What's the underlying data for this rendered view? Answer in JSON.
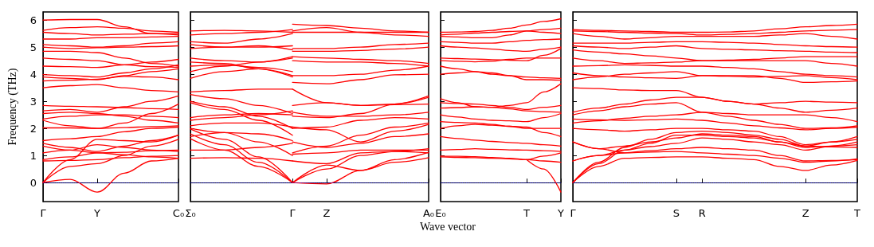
{
  "chart_data": [
    {
      "type": "line",
      "ylabel": "Frequency (THz)",
      "categories": [
        "Γ",
        null,
        "Y",
        null,
        null,
        "C₀"
      ],
      "ylim": [
        -0.7,
        6.3
      ],
      "yticks": [
        0,
        1,
        2,
        3,
        4,
        5,
        6
      ],
      "line_style": "solid",
      "ref_lines": [
        {
          "axis": "y",
          "value": 0,
          "color": "#0000ff",
          "line_style": "dotted"
        }
      ],
      "series": [
        {
          "color": "#ff0000",
          "values": [
            6.0,
            6.02,
            6.02,
            5.75,
            5.5,
            5.45
          ]
        },
        {
          "color": "#ff0000",
          "values": [
            5.62,
            5.72,
            5.75,
            5.7,
            5.6,
            5.55
          ]
        },
        {
          "color": "#ff0000",
          "values": [
            5.55,
            5.5,
            5.45,
            5.48,
            5.5,
            5.5
          ]
        },
        {
          "color": "#ff0000",
          "values": [
            5.3,
            5.3,
            5.35,
            5.35,
            5.38,
            5.4
          ]
        },
        {
          "color": "#ff0000",
          "values": [
            5.1,
            5.05,
            5.0,
            5.05,
            5.15,
            5.2
          ]
        },
        {
          "color": "#ff0000",
          "values": [
            5.0,
            4.95,
            4.98,
            5.0,
            5.02,
            5.05
          ]
        },
        {
          "color": "#ff0000",
          "values": [
            4.85,
            4.85,
            4.8,
            4.6,
            4.4,
            4.3
          ]
        },
        {
          "color": "#ff0000",
          "values": [
            4.6,
            4.55,
            4.5,
            4.35,
            4.28,
            4.25
          ]
        },
        {
          "color": "#ff0000",
          "values": [
            4.3,
            4.28,
            4.25,
            4.35,
            4.45,
            4.55
          ]
        },
        {
          "color": "#ff0000",
          "values": [
            3.99,
            3.95,
            3.9,
            4.05,
            4.2,
            4.35
          ]
        },
        {
          "color": "#ff0000",
          "values": [
            3.9,
            3.85,
            3.8,
            3.95,
            4.1,
            4.2
          ]
        },
        {
          "color": "#ff0000",
          "values": [
            3.75,
            3.78,
            3.82,
            3.92,
            3.9,
            3.8
          ]
        },
        {
          "color": "#ff0000",
          "values": [
            3.5,
            3.58,
            3.62,
            3.5,
            3.4,
            3.35
          ]
        },
        {
          "color": "#ff0000",
          "values": [
            2.85,
            2.82,
            2.8,
            2.77,
            2.73,
            2.7
          ]
        },
        {
          "color": "#ff0000",
          "values": [
            2.65,
            2.7,
            2.6,
            2.8,
            3.0,
            3.2
          ]
        },
        {
          "color": "#ff0000",
          "values": [
            2.55,
            2.6,
            2.55,
            2.45,
            2.3,
            2.2
          ]
        },
        {
          "color": "#ff0000",
          "values": [
            2.35,
            2.45,
            2.5,
            2.5,
            2.45,
            2.4
          ]
        },
        {
          "color": "#ff0000",
          "values": [
            2.3,
            2.1,
            2.0,
            2.2,
            2.55,
            2.9
          ]
        },
        {
          "color": "#ff0000",
          "values": [
            2.02,
            2.02,
            2.0,
            2.03,
            2.07,
            2.1
          ]
        },
        {
          "color": "#ff0000",
          "values": [
            1.55,
            1.62,
            1.7,
            1.88,
            2.0,
            2.05
          ]
        },
        {
          "color": "#ff0000",
          "values": [
            1.45,
            1.3,
            1.15,
            1.35,
            1.55,
            1.75
          ]
        },
        {
          "color": "#ff0000",
          "values": [
            1.35,
            1.2,
            1.1,
            1.12,
            1.18,
            1.2
          ]
        },
        {
          "color": "#ff0000",
          "values": [
            1.1,
            1.2,
            1.4,
            1.3,
            1.2,
            1.15
          ]
        },
        {
          "color": "#ff0000",
          "values": [
            0.85,
            0.95,
            1.1,
            1.03,
            0.95,
            0.9
          ]
        },
        {
          "color": "#ff0000",
          "values": [
            0.8,
            0.82,
            0.85,
            0.92,
            0.97,
            1.0
          ]
        },
        {
          "color": "#ff0000",
          "values": [
            0,
            0.6,
            0.7,
            1.0,
            1.35,
            1.6
          ]
        },
        {
          "color": "#ff0000",
          "values": [
            0,
            0.85,
            1.6,
            1.55,
            1.5,
            1.75
          ]
        },
        {
          "color": "#ff0000",
          "values": [
            0,
            0.12,
            -0.35,
            0.35,
            0.8,
            0.9
          ]
        }
      ]
    },
    {
      "type": "line",
      "xlabel": "Wave vector",
      "categories": [
        "Σ₀",
        null,
        null,
        "Γ",
        "Z",
        null,
        null,
        "A₀"
      ],
      "ylim": [
        -0.7,
        6.3
      ],
      "yticks": [
        0,
        1,
        2,
        3,
        4,
        5,
        6
      ],
      "tick_labels": "x",
      "line_style": "solid",
      "ref_lines": [
        {
          "axis": "y",
          "value": 0,
          "color": "#0000ff",
          "line_style": "dotted"
        }
      ],
      "series": [
        {
          "color": "#ff0000",
          "values": [
            5.6,
            5.62,
            5.6,
            5.55,
            null,
            null,
            null,
            null
          ]
        },
        {
          "color": "#ff0000",
          "values": [
            5.45,
            5.5,
            5.55,
            5.65,
            null,
            null,
            null,
            null
          ]
        },
        {
          "color": "#ff0000",
          "values": [
            5.2,
            5.15,
            5.3,
            5.5,
            null,
            null,
            null,
            null
          ]
        },
        {
          "color": "#ff0000",
          "values": [
            5.1,
            5.0,
            5.0,
            5.05,
            null,
            null,
            null,
            null
          ]
        },
        {
          "color": "#ff0000",
          "values": [
            4.95,
            5.0,
            5.05,
            4.9,
            null,
            null,
            null,
            null
          ]
        },
        {
          "color": "#ff0000",
          "values": [
            4.6,
            4.5,
            4.45,
            4.65,
            null,
            null,
            null,
            null
          ]
        },
        {
          "color": "#ff0000",
          "values": [
            4.45,
            4.4,
            4.2,
            3.9,
            null,
            null,
            null,
            null
          ]
        },
        {
          "color": "#ff0000",
          "values": [
            4.3,
            4.35,
            4.25,
            4.1,
            null,
            null,
            null,
            null
          ]
        },
        {
          "color": "#ff0000",
          "values": [
            4.1,
            4.3,
            4.45,
            4.6,
            null,
            null,
            null,
            null
          ]
        },
        {
          "color": "#ff0000",
          "values": [
            3.85,
            4.1,
            4.2,
            3.95,
            null,
            null,
            null,
            null
          ]
        },
        {
          "color": "#ff0000",
          "values": [
            3.35,
            3.4,
            3.45,
            3.45,
            null,
            null,
            null,
            null
          ]
        },
        {
          "color": "#ff0000",
          "values": [
            3.25,
            3.1,
            2.85,
            2.55,
            null,
            null,
            null,
            null
          ]
        },
        {
          "color": "#ff0000",
          "values": [
            3.0,
            2.8,
            2.45,
            2.0,
            null,
            null,
            null,
            null
          ]
        },
        {
          "color": "#ff0000",
          "values": [
            2.95,
            2.7,
            2.3,
            1.75,
            null,
            null,
            null,
            null
          ]
        },
        {
          "color": "#ff0000",
          "values": [
            2.4,
            2.5,
            2.55,
            2.5,
            null,
            null,
            null,
            null
          ]
        },
        {
          "color": "#ff0000",
          "values": [
            2.3,
            2.4,
            2.5,
            2.65,
            null,
            null,
            null,
            null
          ]
        },
        {
          "color": "#ff0000",
          "values": [
            2.1,
            2.2,
            2.2,
            2.05,
            null,
            null,
            null,
            null
          ]
        },
        {
          "color": "#ff0000",
          "values": [
            2.0,
            1.85,
            1.5,
            1.0,
            null,
            null,
            null,
            null
          ]
        },
        {
          "color": "#ff0000",
          "values": [
            1.98,
            1.6,
            0.95,
            0,
            null,
            null,
            null,
            null
          ]
        },
        {
          "color": "#ff0000",
          "values": [
            1.7,
            1.85,
            1.8,
            1.55,
            null,
            null,
            null,
            null
          ]
        },
        {
          "color": "#ff0000",
          "values": [
            1.62,
            1.2,
            0.6,
            0,
            null,
            null,
            null,
            null
          ]
        },
        {
          "color": "#ff0000",
          "values": [
            1.2,
            1.2,
            1.3,
            1.45,
            null,
            null,
            null,
            null
          ]
        },
        {
          "color": "#ff0000",
          "values": [
            0.9,
            0.92,
            0.9,
            0.8,
            null,
            null,
            null,
            null
          ]
        },
        {
          "color": "#ff0000",
          "values": [
            1.8,
            1.4,
            0.75,
            0,
            null,
            null,
            null,
            null
          ]
        },
        {
          "color": "#ff0000",
          "values": [
            null,
            null,
            null,
            5.85,
            5.8,
            5.7,
            5.6,
            5.55
          ]
        },
        {
          "color": "#ff0000",
          "values": [
            null,
            null,
            null,
            5.6,
            5.72,
            5.55,
            5.45,
            5.4
          ]
        },
        {
          "color": "#ff0000",
          "values": [
            null,
            null,
            null,
            5.55,
            5.55,
            5.55,
            5.55,
            5.55
          ]
        },
        {
          "color": "#ff0000",
          "values": [
            null,
            null,
            null,
            4.95,
            4.95,
            5.0,
            5.1,
            5.15
          ]
        },
        {
          "color": "#ff0000",
          "values": [
            null,
            null,
            null,
            4.85,
            4.85,
            4.88,
            4.93,
            5.0
          ]
        },
        {
          "color": "#ff0000",
          "values": [
            null,
            null,
            null,
            4.65,
            4.6,
            4.55,
            4.5,
            4.4
          ]
        },
        {
          "color": "#ff0000",
          "values": [
            null,
            null,
            null,
            4.5,
            4.45,
            4.45,
            4.4,
            4.3
          ]
        },
        {
          "color": "#ff0000",
          "values": [
            null,
            null,
            null,
            3.95,
            3.95,
            4.0,
            4.15,
            4.3
          ]
        },
        {
          "color": "#ff0000",
          "values": [
            null,
            null,
            null,
            3.7,
            3.65,
            3.8,
            3.98,
            4.0
          ]
        },
        {
          "color": "#ff0000",
          "values": [
            null,
            null,
            null,
            3.45,
            2.95,
            2.85,
            2.9,
            3.2
          ]
        },
        {
          "color": "#ff0000",
          "values": [
            null,
            null,
            null,
            2.85,
            2.95,
            2.85,
            2.88,
            2.9
          ]
        },
        {
          "color": "#ff0000",
          "values": [
            null,
            null,
            null,
            2.6,
            2.45,
            2.45,
            2.5,
            2.6
          ]
        },
        {
          "color": "#ff0000",
          "values": [
            null,
            null,
            null,
            2.45,
            2.4,
            2.55,
            2.9,
            3.15
          ]
        },
        {
          "color": "#ff0000",
          "values": [
            null,
            null,
            null,
            2.0,
            2.05,
            2.3,
            2.4,
            2.35
          ]
        },
        {
          "color": "#ff0000",
          "values": [
            null,
            null,
            null,
            2.05,
            1.95,
            1.5,
            1.9,
            2.15
          ]
        },
        {
          "color": "#ff0000",
          "values": [
            null,
            null,
            null,
            1.5,
            1.3,
            1.45,
            1.7,
            1.8
          ]
        },
        {
          "color": "#ff0000",
          "values": [
            null,
            null,
            null,
            1.1,
            1.35,
            1.75,
            2.05,
            2.2
          ]
        },
        {
          "color": "#ff0000",
          "values": [
            null,
            null,
            null,
            1.05,
            1.1,
            1.2,
            1.2,
            1.2
          ]
        },
        {
          "color": "#ff0000",
          "values": [
            null,
            null,
            null,
            0.8,
            0.7,
            1.1,
            1.15,
            1.1
          ]
        },
        {
          "color": "#ff0000",
          "values": [
            null,
            null,
            null,
            0,
            0.65,
            0.45,
            0.75,
            0.92
          ]
        },
        {
          "color": "#ff0000",
          "values": [
            null,
            null,
            null,
            0,
            0.5,
            1.0,
            1.15,
            1.25
          ]
        },
        {
          "color": "#ff0000",
          "values": [
            null,
            null,
            null,
            0,
            -0.05,
            0.45,
            0.85,
            1.12
          ]
        }
      ]
    },
    {
      "type": "line",
      "categories": [
        "E₀",
        null,
        null,
        null,
        null,
        "T",
        null,
        "Y"
      ],
      "ylim": [
        -0.7,
        6.3
      ],
      "yticks": [
        0,
        1,
        2,
        3,
        4,
        5,
        6
      ],
      "tick_labels": "x",
      "line_style": "solid",
      "ref_lines": [
        {
          "axis": "y",
          "value": 0,
          "color": "#0000ff",
          "line_style": "dotted"
        }
      ],
      "series": [
        {
          "color": "#ff0000",
          "values": [
            5.55,
            5.56,
            5.58,
            5.62,
            5.7,
            5.82,
            5.95,
            6.05
          ]
        },
        {
          "color": "#ff0000",
          "values": [
            5.45,
            5.48,
            5.52,
            5.55,
            5.58,
            5.6,
            5.55,
            5.5
          ]
        },
        {
          "color": "#ff0000",
          "values": [
            5.4,
            5.38,
            5.35,
            5.35,
            5.45,
            5.6,
            5.65,
            5.7
          ]
        },
        {
          "color": "#ff0000",
          "values": [
            5.2,
            5.18,
            5.15,
            5.15,
            5.2,
            5.25,
            5.28,
            5.3
          ]
        },
        {
          "color": "#ff0000",
          "values": [
            5.05,
            5.0,
            4.97,
            4.93,
            4.88,
            4.85,
            4.92,
            5.0
          ]
        },
        {
          "color": "#ff0000",
          "values": [
            4.6,
            4.58,
            4.56,
            4.54,
            4.52,
            4.5,
            4.7,
            4.95
          ]
        },
        {
          "color": "#ff0000",
          "values": [
            4.5,
            4.48,
            4.46,
            4.48,
            4.55,
            4.6,
            4.6,
            4.6
          ]
        },
        {
          "color": "#ff0000",
          "values": [
            4.3,
            4.2,
            4.1,
            4.0,
            3.95,
            3.9,
            3.87,
            3.85
          ]
        },
        {
          "color": "#ff0000",
          "values": [
            4.0,
            4.05,
            4.1,
            4.05,
            3.95,
            3.8,
            3.8,
            3.78
          ]
        },
        {
          "color": "#ff0000",
          "values": [
            3.1,
            2.95,
            2.8,
            2.78,
            2.85,
            2.95,
            3.35,
            3.65
          ]
        },
        {
          "color": "#ff0000",
          "values": [
            2.95,
            2.92,
            2.9,
            2.85,
            2.78,
            2.7,
            2.78,
            2.85
          ]
        },
        {
          "color": "#ff0000",
          "values": [
            2.75,
            2.77,
            2.8,
            2.78,
            2.72,
            2.65,
            2.62,
            2.6
          ]
        },
        {
          "color": "#ff0000",
          "values": [
            2.5,
            2.42,
            2.35,
            2.3,
            2.28,
            2.25,
            2.4,
            2.55
          ]
        },
        {
          "color": "#ff0000",
          "values": [
            2.25,
            2.22,
            2.2,
            2.15,
            2.08,
            2.0,
            2.0,
            2.0
          ]
        },
        {
          "color": "#ff0000",
          "values": [
            2.0,
            2.1,
            2.15,
            2.12,
            2.08,
            2.05,
            1.85,
            1.7
          ]
        },
        {
          "color": "#ff0000",
          "values": [
            1.7,
            1.63,
            1.57,
            1.52,
            1.48,
            1.45,
            1.4,
            1.35
          ]
        },
        {
          "color": "#ff0000",
          "values": [
            1.2,
            1.22,
            1.25,
            1.23,
            1.21,
            1.2,
            1.18,
            1.15
          ]
        },
        {
          "color": "#ff0000",
          "values": [
            0.95,
            0.93,
            0.92,
            0.9,
            0.88,
            0.85,
            0.98,
            1.1
          ]
        },
        {
          "color": "#ff0000",
          "values": [
            0.98,
            0.97,
            0.96,
            0.93,
            0.9,
            0.85,
            0.8,
            0.75
          ]
        },
        {
          "color": "#ff0000",
          "values": [
            null,
            null,
            null,
            null,
            null,
            0.85,
            0.5,
            -0.35
          ]
        }
      ]
    },
    {
      "type": "line",
      "categories": [
        "Γ",
        null,
        null,
        null,
        "S",
        "R",
        null,
        null,
        null,
        "Z",
        null,
        "T"
      ],
      "ylim": [
        -0.7,
        6.3
      ],
      "yticks": [
        0,
        1,
        2,
        3,
        4,
        5,
        6
      ],
      "tick_labels": "x",
      "line_style": "solid",
      "ref_lines": [
        {
          "axis": "y",
          "value": 0,
          "color": "#0000ff",
          "line_style": "dotted"
        }
      ],
      "series": [
        {
          "color": "#ff0000",
          "values": [
            5.65,
            5.62,
            5.6,
            5.58,
            5.55,
            5.55,
            5.56,
            5.6,
            5.68,
            5.75,
            5.8,
            5.85
          ]
        },
        {
          "color": "#ff0000",
          "values": [
            5.6,
            5.58,
            5.55,
            5.52,
            5.5,
            5.45,
            5.47,
            5.5,
            5.55,
            5.6,
            5.63,
            5.65
          ]
        },
        {
          "color": "#ff0000",
          "values": [
            5.5,
            5.4,
            5.3,
            5.35,
            5.4,
            5.4,
            5.4,
            5.4,
            5.45,
            5.5,
            5.4,
            5.3
          ]
        },
        {
          "color": "#ff0000",
          "values": [
            5.15,
            5.15,
            5.15,
            5.18,
            5.2,
            5.2,
            5.18,
            5.15,
            5.1,
            5.05,
            5.02,
            5.0
          ]
        },
        {
          "color": "#ff0000",
          "values": [
            5.05,
            5.0,
            4.95,
            5.0,
            5.05,
            4.95,
            4.92,
            4.9,
            4.87,
            4.85,
            4.82,
            4.8
          ]
        },
        {
          "color": "#ff0000",
          "values": [
            4.9,
            4.82,
            4.75,
            4.68,
            4.6,
            4.5,
            4.52,
            4.55,
            4.6,
            4.65,
            4.65,
            4.65
          ]
        },
        {
          "color": "#ff0000",
          "values": [
            4.6,
            4.5,
            4.4,
            4.42,
            4.45,
            4.5,
            4.5,
            4.5,
            4.5,
            4.5,
            4.4,
            4.3
          ]
        },
        {
          "color": "#ff0000",
          "values": [
            4.3,
            4.32,
            4.35,
            4.33,
            4.3,
            4.3,
            4.25,
            4.2,
            4.1,
            4.0,
            3.95,
            3.9
          ]
        },
        {
          "color": "#ff0000",
          "values": [
            4.05,
            3.95,
            3.9,
            3.87,
            3.85,
            3.95,
            3.93,
            3.9,
            3.92,
            3.95,
            3.88,
            3.8
          ]
        },
        {
          "color": "#ff0000",
          "values": [
            3.8,
            3.9,
            4.0,
            4.05,
            4.1,
            3.95,
            3.95,
            3.95,
            3.85,
            3.7,
            3.72,
            3.75
          ]
        },
        {
          "color": "#ff0000",
          "values": [
            3.5,
            3.47,
            3.42,
            3.4,
            3.4,
            3.15,
            3.0,
            2.9,
            2.95,
            3.0,
            2.97,
            2.95
          ]
        },
        {
          "color": "#ff0000",
          "values": [
            2.6,
            2.75,
            2.9,
            3.05,
            3.15,
            3.15,
            3.0,
            2.9,
            2.75,
            2.6,
            2.67,
            2.75
          ]
        },
        {
          "color": "#ff0000",
          "values": [
            2.5,
            2.65,
            2.8,
            2.9,
            2.95,
            2.6,
            2.55,
            2.5,
            2.5,
            2.5,
            2.4,
            2.25
          ]
        },
        {
          "color": "#ff0000",
          "values": [
            2.35,
            2.32,
            2.3,
            2.32,
            2.35,
            2.3,
            2.2,
            2.1,
            2.02,
            1.95,
            2.0,
            2.05
          ]
        },
        {
          "color": "#ff0000",
          "values": [
            2.2,
            2.28,
            2.38,
            2.45,
            2.5,
            2.6,
            2.45,
            2.3,
            2.15,
            2.0,
            2.02,
            2.1
          ]
        },
        {
          "color": "#ff0000",
          "values": [
            2.0,
            1.95,
            1.9,
            1.95,
            2.0,
            2.0,
            1.95,
            1.9,
            1.7,
            1.4,
            1.5,
            1.6
          ]
        },
        {
          "color": "#ff0000",
          "values": [
            1.5,
            1.25,
            1.1,
            1.18,
            1.25,
            1.3,
            1.25,
            1.2,
            1.0,
            0.8,
            0.82,
            0.85
          ]
        },
        {
          "color": "#ff0000",
          "values": [
            0.8,
            1.0,
            1.2,
            1.45,
            1.75,
            1.75,
            1.7,
            1.65,
            1.5,
            1.35,
            1.32,
            1.3
          ]
        },
        {
          "color": "#ff0000",
          "values": [
            0.8,
            1.0,
            1.1,
            1.13,
            1.15,
            1.1,
            1.05,
            1.0,
            0.9,
            0.75,
            0.8,
            0.88
          ]
        },
        {
          "color": "#ff0000",
          "values": [
            0,
            0.6,
            0.9,
            0.93,
            0.95,
            0.95,
            0.9,
            0.85,
            0.6,
            0.45,
            0.65,
            0.82
          ]
        },
        {
          "color": "#ff0000",
          "values": [
            0,
            0.7,
            1.2,
            1.33,
            1.45,
            1.65,
            1.6,
            1.5,
            1.4,
            1.2,
            1.35,
            1.5
          ]
        },
        {
          "color": "#ff0000",
          "values": [
            0,
            0.75,
            1.3,
            1.6,
            1.85,
            1.9,
            1.85,
            1.75,
            1.6,
            1.35,
            1.5,
            1.7
          ]
        },
        {
          "color": "#ff0000",
          "values": [
            1.5,
            1.25,
            1.35,
            1.5,
            1.65,
            1.8,
            1.75,
            1.7,
            1.5,
            1.3,
            1.35,
            1.4
          ]
        }
      ]
    }
  ]
}
